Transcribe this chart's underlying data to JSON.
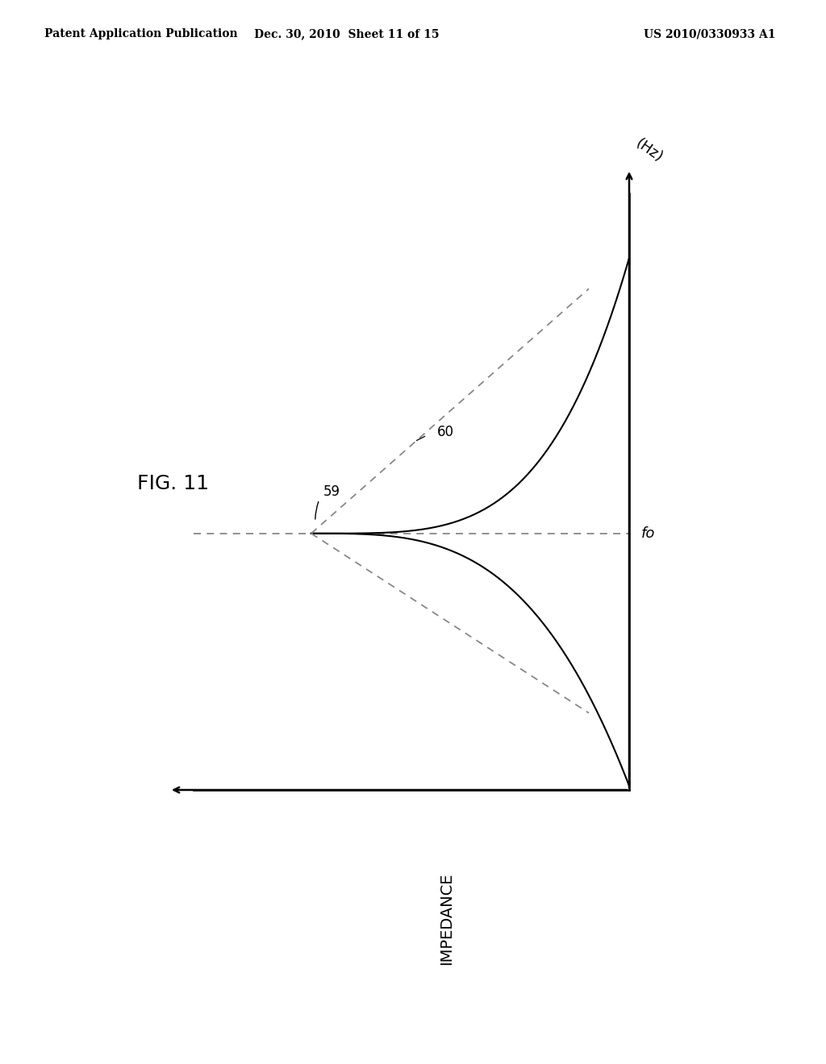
{
  "background_color": "#ffffff",
  "header_left": "Patent Application Publication",
  "header_mid": "Dec. 30, 2010  Sheet 11 of 15",
  "header_right": "US 2010/0330933 A1",
  "fig_label": "FIG. 11",
  "y_axis_label": "(Hz)",
  "x_axis_label": "IMPEDANCE",
  "fo_label": "fo",
  "label_59": "59",
  "label_60": "60",
  "line_color": "#000000",
  "dashed_color": "#888888",
  "text_color": "#000000",
  "header_fontsize": 10,
  "fig_label_fontsize": 18,
  "axis_label_fontsize": 14
}
